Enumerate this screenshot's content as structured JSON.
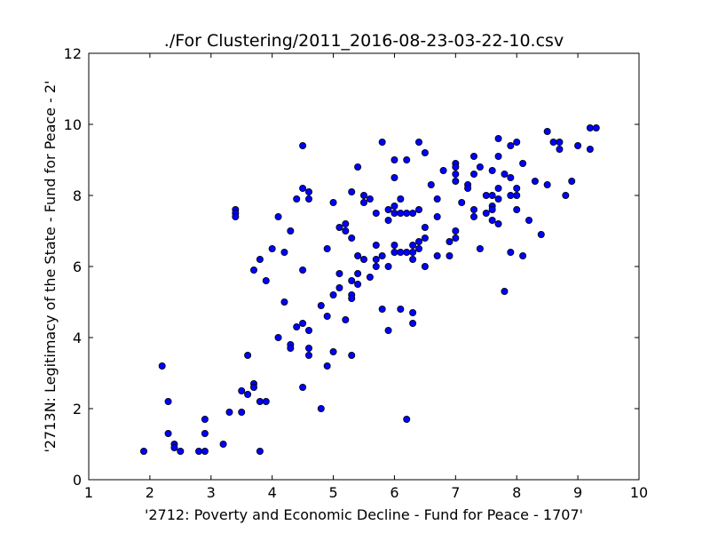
{
  "chart_data": {
    "type": "scatter",
    "title": "./For Clustering/2011_2016-08-23-03-22-10.csv",
    "xlabel": "'2712: Poverty and Economic Decline - Fund for Peace - 1707'",
    "ylabel": "'2713N: Legitimacy of the State - Fund for Peace - 2'",
    "xlim": [
      1,
      10
    ],
    "ylim": [
      0,
      12
    ],
    "xticks": [
      1,
      2,
      3,
      4,
      5,
      6,
      7,
      8,
      9,
      10
    ],
    "yticks": [
      0,
      2,
      4,
      6,
      8,
      10,
      12
    ],
    "grid": false,
    "legend": "none",
    "marker_color": "#0000ff",
    "marker_edge": "#000000",
    "points": [
      [
        1.9,
        0.8
      ],
      [
        2.2,
        3.2
      ],
      [
        2.3,
        2.2
      ],
      [
        2.3,
        1.3
      ],
      [
        2.4,
        1.0
      ],
      [
        2.4,
        0.9
      ],
      [
        2.5,
        0.8
      ],
      [
        2.8,
        0.8
      ],
      [
        2.9,
        0.8
      ],
      [
        2.9,
        1.7
      ],
      [
        2.9,
        1.3
      ],
      [
        3.2,
        1.0
      ],
      [
        3.3,
        1.9
      ],
      [
        3.4,
        7.6
      ],
      [
        3.4,
        7.5
      ],
      [
        3.4,
        7.4
      ],
      [
        3.5,
        2.5
      ],
      [
        3.5,
        1.9
      ],
      [
        3.6,
        2.4
      ],
      [
        3.6,
        3.5
      ],
      [
        3.7,
        2.7
      ],
      [
        3.7,
        2.6
      ],
      [
        3.7,
        5.9
      ],
      [
        3.8,
        6.2
      ],
      [
        3.8,
        2.2
      ],
      [
        3.8,
        0.8
      ],
      [
        3.9,
        5.6
      ],
      [
        3.9,
        2.2
      ],
      [
        4.0,
        6.5
      ],
      [
        4.1,
        7.4
      ],
      [
        4.1,
        4.0
      ],
      [
        4.2,
        6.4
      ],
      [
        4.2,
        5.0
      ],
      [
        4.3,
        7.0
      ],
      [
        4.3,
        3.8
      ],
      [
        4.3,
        3.7
      ],
      [
        4.4,
        7.9
      ],
      [
        4.4,
        4.3
      ],
      [
        4.5,
        9.4
      ],
      [
        4.5,
        8.2
      ],
      [
        4.5,
        5.9
      ],
      [
        4.5,
        4.4
      ],
      [
        4.5,
        2.6
      ],
      [
        4.6,
        8.1
      ],
      [
        4.6,
        7.9
      ],
      [
        4.6,
        4.2
      ],
      [
        4.6,
        3.7
      ],
      [
        4.6,
        3.5
      ],
      [
        4.8,
        4.9
      ],
      [
        4.8,
        2.0
      ],
      [
        4.9,
        6.5
      ],
      [
        4.9,
        4.6
      ],
      [
        4.9,
        3.2
      ],
      [
        5.0,
        7.8
      ],
      [
        5.0,
        5.2
      ],
      [
        5.0,
        3.6
      ],
      [
        5.1,
        7.1
      ],
      [
        5.1,
        5.8
      ],
      [
        5.1,
        5.4
      ],
      [
        5.2,
        7.2
      ],
      [
        5.2,
        7.0
      ],
      [
        5.2,
        4.5
      ],
      [
        5.3,
        8.1
      ],
      [
        5.3,
        6.8
      ],
      [
        5.3,
        5.6
      ],
      [
        5.3,
        5.2
      ],
      [
        5.3,
        5.1
      ],
      [
        5.3,
        3.5
      ],
      [
        5.4,
        8.8
      ],
      [
        5.4,
        6.3
      ],
      [
        5.4,
        5.8
      ],
      [
        5.4,
        5.5
      ],
      [
        5.5,
        8.0
      ],
      [
        5.5,
        7.8
      ],
      [
        5.5,
        6.2
      ],
      [
        5.6,
        7.9
      ],
      [
        5.6,
        5.7
      ],
      [
        5.7,
        7.5
      ],
      [
        5.7,
        6.6
      ],
      [
        5.7,
        6.2
      ],
      [
        5.7,
        6.0
      ],
      [
        5.8,
        9.5
      ],
      [
        5.8,
        6.3
      ],
      [
        5.8,
        4.8
      ],
      [
        5.9,
        7.6
      ],
      [
        5.9,
        7.3
      ],
      [
        5.9,
        6.0
      ],
      [
        5.9,
        4.2
      ],
      [
        6.0,
        9.0
      ],
      [
        6.0,
        8.5
      ],
      [
        6.0,
        7.7
      ],
      [
        6.0,
        7.5
      ],
      [
        6.0,
        6.6
      ],
      [
        6.0,
        6.4
      ],
      [
        6.1,
        7.9
      ],
      [
        6.1,
        7.5
      ],
      [
        6.1,
        6.4
      ],
      [
        6.1,
        4.8
      ],
      [
        6.2,
        9.0
      ],
      [
        6.2,
        7.5
      ],
      [
        6.2,
        6.4
      ],
      [
        6.2,
        1.7
      ],
      [
        6.3,
        7.5
      ],
      [
        6.3,
        6.6
      ],
      [
        6.3,
        6.4
      ],
      [
        6.3,
        6.2
      ],
      [
        6.3,
        4.7
      ],
      [
        6.3,
        4.4
      ],
      [
        6.4,
        9.5
      ],
      [
        6.4,
        7.6
      ],
      [
        6.4,
        6.7
      ],
      [
        6.4,
        6.5
      ],
      [
        6.5,
        9.2
      ],
      [
        6.5,
        7.1
      ],
      [
        6.5,
        6.8
      ],
      [
        6.5,
        6.0
      ],
      [
        6.6,
        8.3
      ],
      [
        6.7,
        7.9
      ],
      [
        6.7,
        7.4
      ],
      [
        6.7,
        6.3
      ],
      [
        6.8,
        8.7
      ],
      [
        6.9,
        6.7
      ],
      [
        6.9,
        6.3
      ],
      [
        7.0,
        8.9
      ],
      [
        7.0,
        8.8
      ],
      [
        7.0,
        8.6
      ],
      [
        7.0,
        8.4
      ],
      [
        7.0,
        7.0
      ],
      [
        7.0,
        6.8
      ],
      [
        7.1,
        7.8
      ],
      [
        7.2,
        8.3
      ],
      [
        7.2,
        8.2
      ],
      [
        7.3,
        9.1
      ],
      [
        7.3,
        8.6
      ],
      [
        7.3,
        7.6
      ],
      [
        7.3,
        7.4
      ],
      [
        7.4,
        8.8
      ],
      [
        7.4,
        6.5
      ],
      [
        7.5,
        8.0
      ],
      [
        7.5,
        7.5
      ],
      [
        7.6,
        8.7
      ],
      [
        7.6,
        8.0
      ],
      [
        7.6,
        7.7
      ],
      [
        7.6,
        7.6
      ],
      [
        7.6,
        7.3
      ],
      [
        7.7,
        9.6
      ],
      [
        7.7,
        9.1
      ],
      [
        7.7,
        8.2
      ],
      [
        7.7,
        7.9
      ],
      [
        7.7,
        7.2
      ],
      [
        7.8,
        8.6
      ],
      [
        7.8,
        5.3
      ],
      [
        7.9,
        9.4
      ],
      [
        7.9,
        8.5
      ],
      [
        7.9,
        8.0
      ],
      [
        7.9,
        6.4
      ],
      [
        8.0,
        9.5
      ],
      [
        8.0,
        8.2
      ],
      [
        8.0,
        8.0
      ],
      [
        8.0,
        7.6
      ],
      [
        8.1,
        8.9
      ],
      [
        8.1,
        6.3
      ],
      [
        8.2,
        7.3
      ],
      [
        8.3,
        8.4
      ],
      [
        8.4,
        6.9
      ],
      [
        8.5,
        9.8
      ],
      [
        8.5,
        8.3
      ],
      [
        8.6,
        9.5
      ],
      [
        8.7,
        9.5
      ],
      [
        8.7,
        9.3
      ],
      [
        8.8,
        8.0
      ],
      [
        8.9,
        8.4
      ],
      [
        9.0,
        9.4
      ],
      [
        9.2,
        9.9
      ],
      [
        9.2,
        9.3
      ],
      [
        9.3,
        9.9
      ]
    ]
  }
}
